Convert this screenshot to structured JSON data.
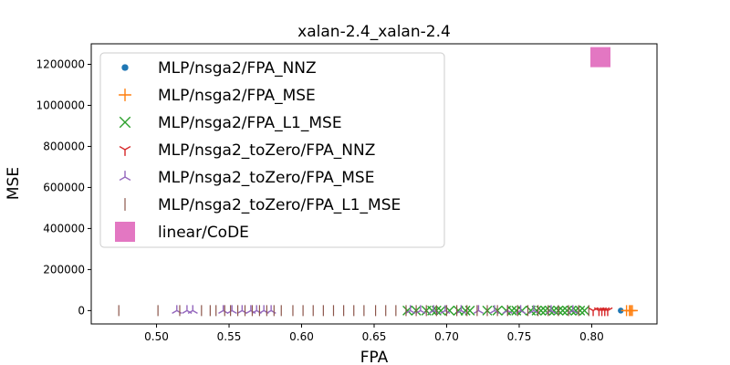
{
  "chart_data": {
    "type": "scatter",
    "title": "xalan-2.4_xalan-2.4",
    "xlabel": "FPA",
    "ylabel": "MSE",
    "xlim": [
      0.455,
      0.845
    ],
    "ylim": [
      -65000,
      1300000
    ],
    "xticks": [
      "0.50",
      "0.55",
      "0.60",
      "0.65",
      "0.70",
      "0.75",
      "0.80"
    ],
    "xtick_values": [
      0.5,
      0.55,
      0.6,
      0.65,
      0.7,
      0.75,
      0.8
    ],
    "yticks": [
      "0",
      "200000",
      "400000",
      "600000",
      "800000",
      "1000000",
      "1200000"
    ],
    "ytick_values": [
      0,
      200000,
      400000,
      600000,
      800000,
      1000000,
      1200000
    ],
    "grid": false,
    "legend_position": "upper-left",
    "series": [
      {
        "name": "MLP/nsga2/FPA_NNZ",
        "marker": "dot",
        "color": "#1f77b4",
        "points": [
          [
            0.82,
            0
          ]
        ]
      },
      {
        "name": "MLP/nsga2/FPA_MSE",
        "marker": "plus",
        "color": "#ff7f0e",
        "points": [
          [
            0.824,
            0
          ],
          [
            0.826,
            0
          ],
          [
            0.827,
            0
          ],
          [
            0.828,
            0
          ]
        ]
      },
      {
        "name": "MLP/nsga2/FPA_L1_MSE",
        "marker": "x",
        "color": "#2ca02c",
        "points": [
          [
            0.673,
            0
          ],
          [
            0.679,
            0
          ],
          [
            0.686,
            0
          ],
          [
            0.69,
            0
          ],
          [
            0.693,
            0
          ],
          [
            0.696,
            0
          ],
          [
            0.702,
            0
          ],
          [
            0.708,
            0
          ],
          [
            0.713,
            0
          ],
          [
            0.716,
            0
          ],
          [
            0.728,
            0
          ],
          [
            0.735,
            0
          ],
          [
            0.741,
            0
          ],
          [
            0.745,
            0
          ],
          [
            0.748,
            0
          ],
          [
            0.752,
            0
          ],
          [
            0.758,
            0
          ],
          [
            0.762,
            0
          ],
          [
            0.765,
            0
          ],
          [
            0.768,
            0
          ],
          [
            0.771,
            0
          ],
          [
            0.774,
            0
          ],
          [
            0.777,
            0
          ],
          [
            0.78,
            0
          ],
          [
            0.783,
            0
          ],
          [
            0.786,
            0
          ],
          [
            0.789,
            0
          ],
          [
            0.792,
            0
          ],
          [
            0.795,
            0
          ]
        ]
      },
      {
        "name": "MLP/nsga2_toZero/FPA_NNZ",
        "marker": "tri-down",
        "color": "#d62728",
        "points": [
          [
            0.801,
            0
          ],
          [
            0.805,
            0
          ],
          [
            0.807,
            0
          ],
          [
            0.809,
            0
          ],
          [
            0.811,
            0
          ]
        ]
      },
      {
        "name": "MLP/nsga2_toZero/FPA_MSE",
        "marker": "tri-up",
        "color": "#9467bd",
        "points": [
          [
            0.514,
            0
          ],
          [
            0.521,
            0
          ],
          [
            0.525,
            0
          ],
          [
            0.546,
            0
          ],
          [
            0.552,
            0
          ],
          [
            0.559,
            0
          ],
          [
            0.565,
            0
          ],
          [
            0.569,
            0
          ],
          [
            0.574,
            0
          ],
          [
            0.579,
            0
          ],
          [
            0.675,
            0
          ],
          [
            0.682,
            0
          ],
          [
            0.691,
            0
          ],
          [
            0.699,
            0
          ],
          [
            0.71,
            0
          ],
          [
            0.722,
            0
          ],
          [
            0.733,
            0
          ],
          [
            0.742,
            0
          ],
          [
            0.751,
            0
          ],
          [
            0.76,
            0
          ],
          [
            0.772,
            0
          ],
          [
            0.787,
            0
          ]
        ]
      },
      {
        "name": "MLP/nsga2_toZero/FPA_L1_MSE",
        "marker": "vline",
        "color": "#8c564b",
        "points": [
          [
            0.474,
            0
          ],
          [
            0.501,
            0
          ],
          [
            0.516,
            0
          ],
          [
            0.531,
            0
          ],
          [
            0.537,
            0
          ],
          [
            0.541,
            0
          ],
          [
            0.547,
            0
          ],
          [
            0.551,
            0
          ],
          [
            0.556,
            0
          ],
          [
            0.561,
            0
          ],
          [
            0.566,
            0
          ],
          [
            0.571,
            0
          ],
          [
            0.576,
            0
          ],
          [
            0.581,
            0
          ],
          [
            0.586,
            0
          ],
          [
            0.594,
            0
          ],
          [
            0.601,
            0
          ],
          [
            0.608,
            0
          ],
          [
            0.615,
            0
          ],
          [
            0.622,
            0
          ],
          [
            0.629,
            0
          ],
          [
            0.636,
            0
          ],
          [
            0.643,
            0
          ],
          [
            0.651,
            0
          ],
          [
            0.658,
            0
          ],
          [
            0.665,
            0
          ],
          [
            0.672,
            0
          ],
          [
            0.679,
            0
          ],
          [
            0.686,
            0
          ],
          [
            0.693,
            0
          ],
          [
            0.7,
            0
          ],
          [
            0.707,
            0
          ],
          [
            0.714,
            0
          ],
          [
            0.721,
            0
          ],
          [
            0.728,
            0
          ],
          [
            0.735,
            0
          ],
          [
            0.742,
            0
          ],
          [
            0.749,
            0
          ],
          [
            0.756,
            0
          ],
          [
            0.763,
            0
          ],
          [
            0.77,
            0
          ],
          [
            0.777,
            0
          ],
          [
            0.784,
            0
          ],
          [
            0.791,
            0
          ],
          [
            0.798,
            0
          ]
        ]
      },
      {
        "name": "linear/CoDE",
        "marker": "square",
        "color": "#e377c2",
        "points": [
          [
            0.806,
            1235000
          ]
        ]
      }
    ]
  }
}
